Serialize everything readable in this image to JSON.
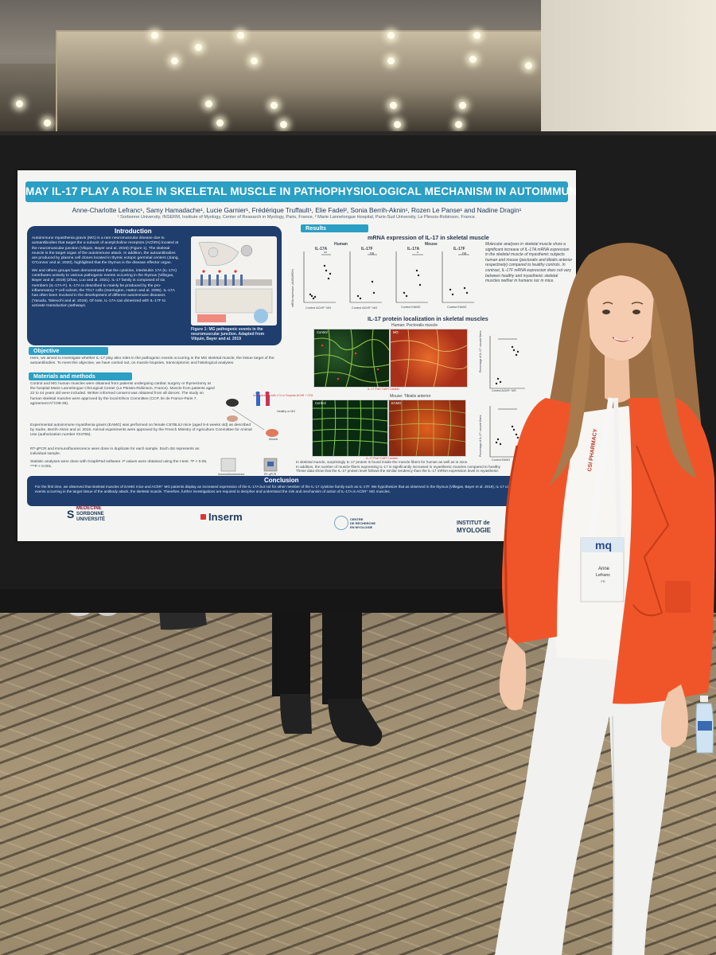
{
  "poster": {
    "title": "MAY IL-17 PLAY A ROLE IN SKELETAL MUSCLE IN PATHOPHYSIOLOGICAL MECHANISM IN AUTOIMMUNE MG?",
    "authors": "Anne-Charlotte Lefranc¹, Samy Hamadache¹, Lucie Garnier¹, Frédérique Truffault¹, Elie Fadel², Sonia Berrih-Aknin¹, Rozen Le Panse¹ and Nadine Dragin¹",
    "affiliations": "¹ Sorbonne University, INSERM, Institute of Myology, Center of Research in Myology, Paris, France, ² Marie Lannelongue Hospital, Paris-Sud University, Le Plessis-Robinson, France.",
    "introduction": {
      "heading": "Introduction",
      "paragraph_1": "Autoimmune myasthenia gravis (MG) is a rare neuromuscular disease due to autoantibodies that target the α subunit of acetylcholine receptors (AChRs) located at the neuromuscular junction (Vilquin, Bayer and al. 2019) (Figure 1). The skeletal muscle is the target organ of the autoimmune attack. In addition, the autoantibodies are produced by plasma cell clones located in thymic ectopic germinal centers (Jiang, O'Connor and al. 2020), highlighted that the thymus is the disease effector organ.",
      "paragraph_2": "We and others groups have demonstrated that the cytokine, interleukin 17A (IL-17A) contributes actively to various pathogenic events occurring in the thymus (Villegas, Bayer and al. 2019) (Zhao, Luo and al. 2021). IL-17 family is composed of six members (IL-17A-F). IL-17A is described to mainly be produced by the pro-inflammatory T-cell subset, the Th17 cells (Harrington, Hatton and al. 2005). IL-17A has often been involved in the development of different autoimmune diseases (Yasuda, Takeuchi and al. 2019). Of note, IL-17A can dimerized with IL-17F to activate transduction pathways.",
      "figure_caption": "Figure 1: MG pathogenic events in the neuromuscular junction. Adapted from Vilquin, Bayer and al. 2019"
    },
    "objective": {
      "heading": "Objective",
      "text": "Here, we aimed to investigate whether IL-17 play also roles in the pathogenic events occurring in the MG skeletal muscle, the tissue target of the autoantibodies. To meet this objective, we have carried out, on muscle biopsies, transcriptomic and histological analyses."
    },
    "methods": {
      "heading": "Materials and methods",
      "item_1": "Control and MG human muscles were obtained from patients undergoing cardiac surgery or thymectomy at the hospital Marie Lannelongue Chirurgical Center (Le Plessis-Robinson, France). Muscle from patients aged 22 to 44 years old were included. Written informed consent was obtained from all donors. The study on human skeletal muscles were approved by the local Ethics Committee (CCP, Ile de France-Paris 7, agreement N°C09-36).",
      "item_2": "Experimental autoimmune myasthenia gravis (EAMG) was performed on female C57BL6J mice (aged 5-6 weeks old) as described by Sudre, Berrih-Aknin and al. 2015. Animal experiments were approved by the French Ministry of Agriculture Committee for Animal Use (authorization number #24755).",
      "item_3": "RT-qPCR and immunofluorescence were done in duplicate for each sample. Each dot represents an individual sample.",
      "item_4": "Statistic analyses were done with GraphPad software. P values were obtained using the t-test. *P < 0.05, ***P < 0.001.",
      "diagram_label_1": "Immunization with L74 or Torpedo AChR + CFA",
      "diagram_label_2": "Healthy or MG",
      "diagram_label_3": "Muscle",
      "diagram_label_4": "RT-qPCR",
      "diagram_label_5": "Immunofluorescence"
    },
    "results": {
      "heading": "Results",
      "mrna_title": "mRNA expression of IL-17 in skeletal muscle",
      "human_label": "Human",
      "mouse_label": "Mouse",
      "panel_1_gene": "IL-17A",
      "panel_2_gene": "IL-17F",
      "panel_3_gene": "IL-17A",
      "panel_4_gene": "IL-17F",
      "panel_ylabel": "mRNA expression (AU/GAPDH)",
      "human_groups": "Control  AChR⁺ MG",
      "mouse_groups": "Control  EAMG",
      "sig_1": "**",
      "sig_2": "ns",
      "sig_3": "*",
      "sig_4": "ns",
      "results_text": "Molecular analyses in skeletal muscle show a significant increase of IL-17A mRNA expression in the skeletal muscle of myasthenic subjects human and mouse (pectoralis and tibialis anterior respectively) compared to healthy controls. In contrast, IL-17F mRNA expression does not vary between healthy and myasthenic skeletal muscles neither in humans nor in mice.",
      "localization_title": "IL-17 protein localization in skeletal muscles",
      "human_muscle": "Human: Pectoralis muscle",
      "mouse_muscle": "Mouse: Tibialis anterior",
      "micro_label_control": "Control",
      "micro_label_mg": "MG",
      "micro_label_eamg": "EAMG",
      "stain_caption": "IL-17 Pos? DAPI Laminin",
      "scatter_ylabel": "Percentage of IL-17⁺ muscle fibers",
      "scatter_groups_human": "Control  AChR⁺ MG",
      "scatter_groups_mouse": "Control  EAMG",
      "bullet_1": "In skeletal muscle, surprisingly IL-17 protein is found inside the muscle fibers for human as well as in mice.",
      "bullet_2": "In addition, the number of muscle fibers expressing IL-17 is significantly increased in myasthenic muscles compared to healthy",
      "bullet_3": "These data show that the IL-17 protein level follows the similar tendency than the IL-17 mRNA expression level in myasthenic"
    },
    "conclusion": {
      "heading": "Conclusion",
      "text": "For the first time, we observed that skeletal muscles of EAMG mice and AChR⁺ MG patients display an increased expression of the IL-17A but not for other member of the IL-17 cytokine family such as IL-17F. We hypothesize that as observed in the thymus (Villegas, Bayer et al. 2019), IL-17 could participate to the pathogenic events occurring in the target tissue of the antibody attack, the skeletal muscle. Therefore, further investigations are required to decipher and understand the role and mechanism of action of IL-17A in AChR⁺ MG muscles."
    },
    "logos": {
      "logo_1_line1": "MÉDECINE",
      "logo_1_line2": "SORBONNE",
      "logo_1_line3": "UNIVERSITÉ",
      "logo_2": "Inserm",
      "logo_3_line1": "CENTRE",
      "logo_3_line2": "DE RECHERCHE",
      "logo_3_line3": "EN MYOLOGIE",
      "logo_4_line1": "INSTITUT de",
      "logo_4_line2": "MYOLOGIE"
    }
  },
  "badge": {
    "lanyard_text": "CSI PHARMACY",
    "logo": "mq",
    "first_name": "Anne",
    "last_name": "Lefranc",
    "country": "FR"
  },
  "colors": {
    "poster_blue": "#2b9fc4",
    "poster_navy": "#1f3e6e",
    "jacket_orange": "#f0552a"
  }
}
